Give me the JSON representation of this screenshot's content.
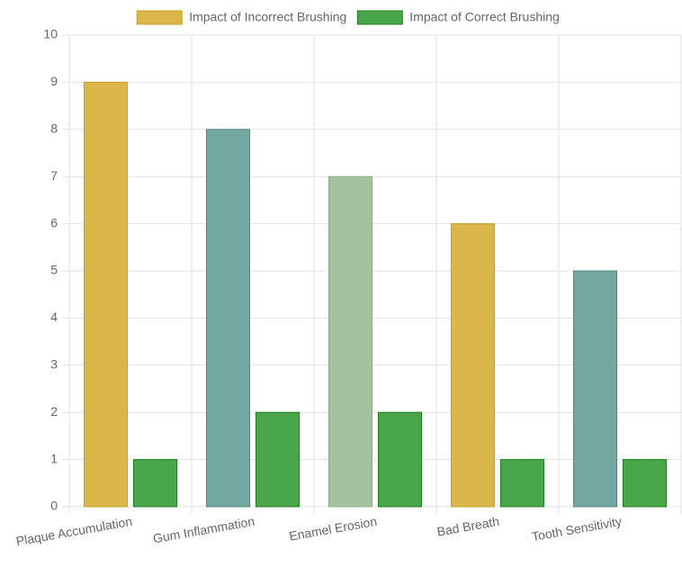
{
  "chart_data": {
    "type": "bar",
    "categories": [
      "Plaque Accumulation",
      "Gum Inflammation",
      "Enamel Erosion",
      "Bad Breath",
      "Tooth Sensitivity"
    ],
    "series": [
      {
        "name": "Impact of Incorrect Brushing",
        "color": "#dbb64b",
        "border": "#c9a020",
        "colors": [
          "#dbb64b",
          "#72a8a1",
          "#a4c29b",
          "#dbb64b",
          "#72a8a1"
        ],
        "borders": [
          "#c9a020",
          "#4f8a82",
          "#8aac80",
          "#c9a020",
          "#4f8a82"
        ],
        "values": [
          9,
          8,
          7,
          6,
          5
        ]
      },
      {
        "name": "Impact of Correct Brushing",
        "color": "#4aa64a",
        "border": "#1f7f1f",
        "values": [
          1,
          2,
          2,
          1,
          1
        ]
      }
    ],
    "ylim": [
      0,
      10
    ],
    "yticks": [
      0,
      1,
      2,
      3,
      4,
      5,
      6,
      7,
      8,
      9,
      10
    ],
    "grid": true
  }
}
